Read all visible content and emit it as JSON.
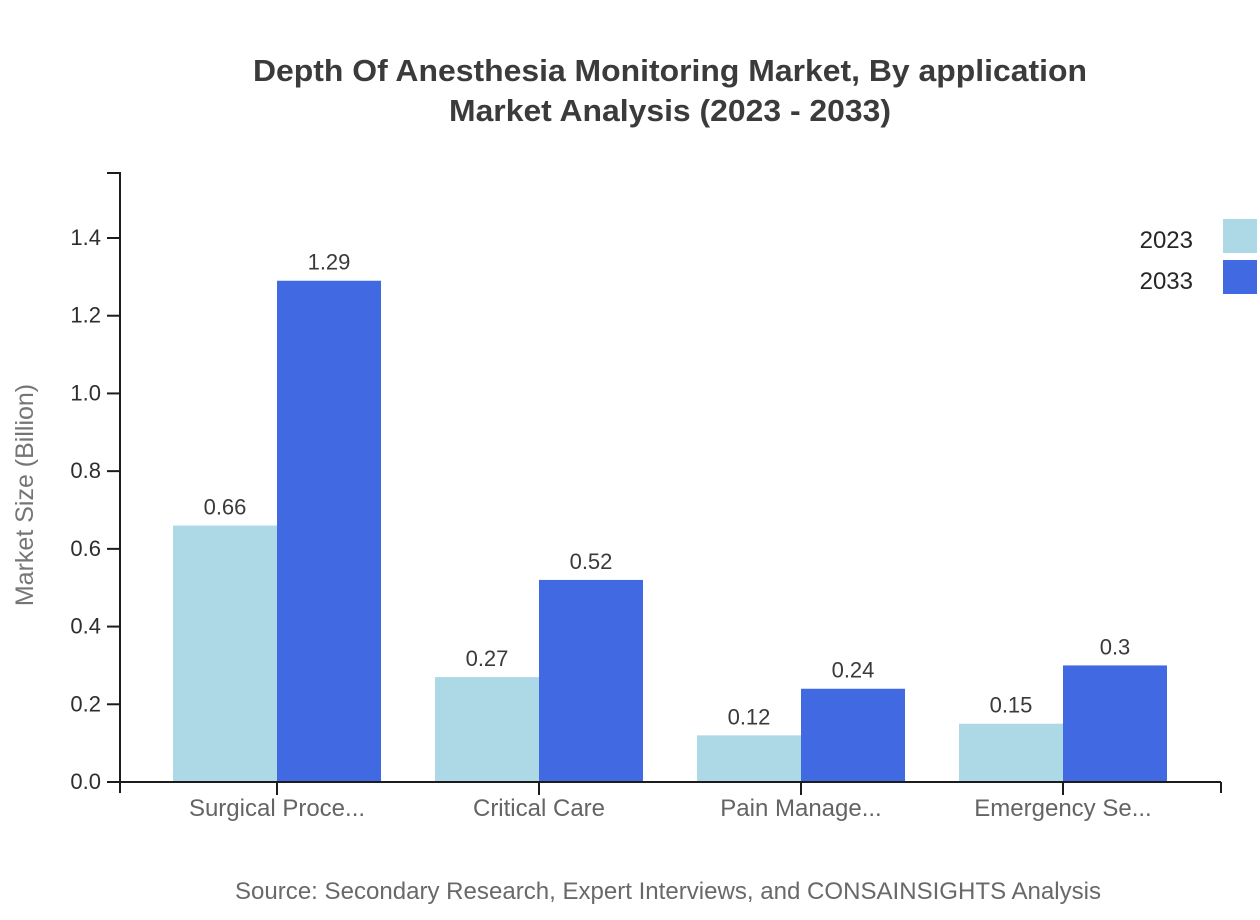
{
  "chart_data": {
    "type": "bar",
    "title": "Depth Of Anesthesia Monitoring Market, By application Market Analysis (2023 - 2033)",
    "title_lines": [
      "Depth Of Anesthesia Monitoring Market, By application",
      "Market Analysis (2023 - 2033)"
    ],
    "xlabel": "",
    "ylabel": "Market Size (Billion)",
    "categories": [
      "Surgical Proce...",
      "Critical Care",
      "Pain Manage...",
      "Emergency Se..."
    ],
    "series": [
      {
        "name": "2023",
        "color": "#ADD8E6",
        "values": [
          0.66,
          0.27,
          0.12,
          0.15
        ],
        "labels": [
          "0.66",
          "0.27",
          "0.12",
          "0.15"
        ]
      },
      {
        "name": "2033",
        "color": "#4169E1",
        "values": [
          1.29,
          0.52,
          0.24,
          0.3
        ],
        "labels": [
          "1.29",
          "0.52",
          "0.24",
          "0.3"
        ]
      }
    ],
    "ylim": [
      0,
      1.55
    ],
    "yticks": [
      "0.0",
      "0.2",
      "0.4",
      "0.6",
      "0.8",
      "1.0",
      "1.2",
      "1.4"
    ],
    "grid": false,
    "legend_position": "top-right"
  },
  "footer": {
    "source": "Source: Secondary Research, Expert Interviews, and CONSAINSIGHTS Analysis"
  }
}
